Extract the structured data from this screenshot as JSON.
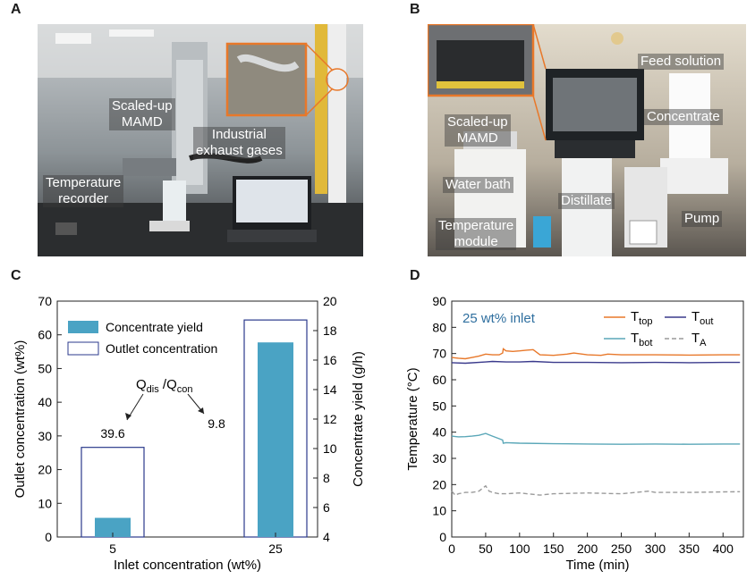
{
  "panels": {
    "a": "A",
    "b": "B",
    "c": "C",
    "d": "D"
  },
  "photo_a": {
    "labels": {
      "mamd": "Scaled-up\nMAMD",
      "exhaust": "Industrial\nexhaust gases",
      "recorder": "Temperature\nrecorder"
    },
    "colors": {
      "inset_border": "#e8782a"
    }
  },
  "photo_b": {
    "labels": {
      "feed": "Feed solution",
      "mamd": "Scaled-up\nMAMD",
      "concentrate": "Concentrate",
      "water_bath": "Water bath",
      "distillate": "Distillate",
      "module": "Temperature\nmodule",
      "pump": "Pump"
    }
  },
  "chart_data": [
    {
      "type": "bar",
      "panel": "C",
      "categories": [
        "5",
        "25"
      ],
      "xlabel": "Inlet concentration (wt%)",
      "ylabel_left": "Outlet concentration (wt%)",
      "ylabel_right": "Concentrate yield (g/h)",
      "ylim_left": [
        0,
        70
      ],
      "yticks_left": [
        0,
        10,
        20,
        30,
        40,
        50,
        60,
        70
      ],
      "ylim_right": [
        4,
        20
      ],
      "yticks_right": [
        4,
        6,
        8,
        10,
        12,
        14,
        16,
        18,
        20
      ],
      "series": [
        {
          "name": "Concentrate yield",
          "axis": "right",
          "values": [
            5.3,
            17.2
          ],
          "color": "#4aa3c4"
        },
        {
          "name": "Outlet concentration",
          "axis": "left",
          "values": [
            26.6,
            64.4
          ],
          "color": "#2b3a8c"
        }
      ],
      "annotations": {
        "ratio_main": "Q",
        "ratio_sub1": "dis",
        "ratio_sep": " /Q",
        "ratio_sub2": "con",
        "dis_value": "39.6",
        "con_value": "9.8"
      },
      "legend": "top-left"
    },
    {
      "type": "line",
      "panel": "D",
      "xlabel": "Time (min)",
      "ylabel": "Temperature (°C)",
      "xlim": [
        0,
        430
      ],
      "ylim": [
        0,
        90
      ],
      "xticks": [
        0,
        50,
        100,
        150,
        200,
        250,
        300,
        350,
        400
      ],
      "yticks": [
        0,
        10,
        20,
        30,
        40,
        50,
        60,
        70,
        80,
        90
      ],
      "annotation": "25 wt% inlet",
      "legend": "top-right",
      "series": [
        {
          "name": "T",
          "sub": "top",
          "color": "#e8782a",
          "dash": false,
          "x": [
            0,
            10,
            20,
            30,
            40,
            50,
            60,
            70,
            75,
            76,
            80,
            90,
            100,
            110,
            120,
            130,
            150,
            170,
            180,
            200,
            220,
            230,
            250,
            300,
            350,
            400,
            425
          ],
          "y": [
            68.5,
            68.2,
            68.0,
            68.5,
            69.0,
            69.8,
            69.5,
            69.5,
            70.2,
            71.8,
            71.0,
            70.8,
            71.0,
            71.3,
            71.5,
            69.5,
            69.3,
            69.8,
            70.2,
            69.5,
            69.3,
            69.8,
            69.5,
            69.5,
            69.4,
            69.5,
            69.5
          ]
        },
        {
          "name": "T",
          "sub": "out",
          "color": "#3a3a8c",
          "dash": false,
          "x": [
            0,
            20,
            50,
            60,
            80,
            100,
            120,
            150,
            200,
            250,
            300,
            350,
            400,
            425
          ],
          "y": [
            66.5,
            66.3,
            66.8,
            67.0,
            66.8,
            66.8,
            67.0,
            66.6,
            66.6,
            66.5,
            66.6,
            66.5,
            66.6,
            66.6
          ]
        },
        {
          "name": "T",
          "sub": "bot",
          "color": "#5aa7b8",
          "dash": false,
          "x": [
            0,
            10,
            20,
            30,
            40,
            50,
            55,
            60,
            70,
            75,
            76,
            80,
            100,
            150,
            200,
            250,
            300,
            350,
            400,
            425
          ],
          "y": [
            38.5,
            38.2,
            38.3,
            38.5,
            38.8,
            39.5,
            39.0,
            38.5,
            37.5,
            37.0,
            35.8,
            36.0,
            35.8,
            35.6,
            35.5,
            35.4,
            35.5,
            35.4,
            35.5,
            35.5
          ]
        },
        {
          "name": "T",
          "sub": "A",
          "color": "#9a9a9a",
          "dash": true,
          "x": [
            0,
            5,
            10,
            20,
            30,
            40,
            45,
            50,
            55,
            60,
            70,
            80,
            100,
            130,
            150,
            200,
            250,
            290,
            300,
            350,
            400,
            425
          ],
          "y": [
            17.5,
            16.0,
            16.5,
            17.0,
            17.0,
            17.5,
            18.5,
            19.5,
            17.5,
            17.0,
            16.5,
            16.5,
            16.8,
            16.0,
            16.5,
            16.8,
            16.5,
            17.5,
            17.0,
            17.0,
            17.2,
            17.3
          ]
        }
      ]
    }
  ]
}
